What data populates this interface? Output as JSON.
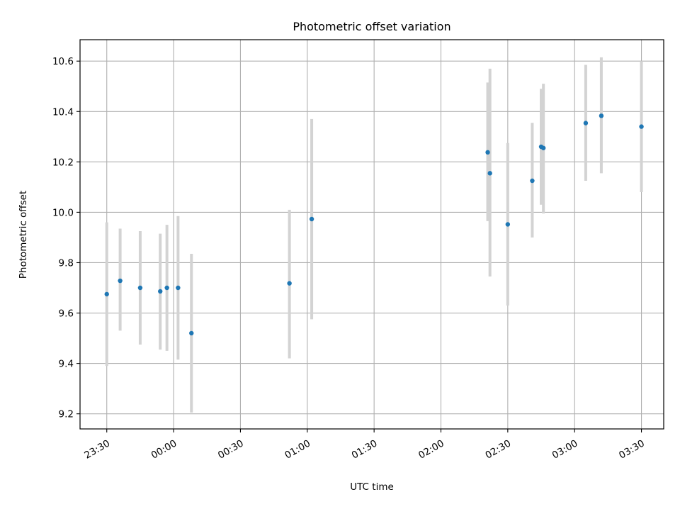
{
  "chart_data": {
    "type": "scatter",
    "title": "Photometric offset variation",
    "xlabel": "UTC time",
    "ylabel": "Photometric offset",
    "x_unit": "UTC time (hh:mm)",
    "xlim": [
      "23:18",
      "03:40"
    ],
    "ylim": [
      9.14,
      10.685
    ],
    "x_ticks": [
      "23:30",
      "00:00",
      "00:30",
      "01:00",
      "01:30",
      "02:00",
      "02:30",
      "03:00",
      "03:30"
    ],
    "y_ticks": [
      9.2,
      9.4,
      9.6,
      9.8,
      10.0,
      10.2,
      10.4,
      10.6
    ],
    "y_tick_labels": [
      "9.2",
      "9.4",
      "9.6",
      "9.8",
      "10.0",
      "10.2",
      "10.4",
      "10.6"
    ],
    "x_tick_label_rotation": 30,
    "grid": true,
    "legend": "none",
    "points": [
      {
        "x": "23:30",
        "y": 9.675,
        "err_low": 9.39,
        "err_high": 9.96
      },
      {
        "x": "23:36",
        "y": 9.728,
        "err_low": 9.53,
        "err_high": 9.935
      },
      {
        "x": "23:45",
        "y": 9.7,
        "err_low": 9.475,
        "err_high": 9.925
      },
      {
        "x": "23:54",
        "y": 9.686,
        "err_low": 9.455,
        "err_high": 9.915
      },
      {
        "x": "23:57",
        "y": 9.7,
        "err_low": 9.45,
        "err_high": 9.95
      },
      {
        "x": "00:02",
        "y": 9.7,
        "err_low": 9.415,
        "err_high": 9.985
      },
      {
        "x": "00:08",
        "y": 9.52,
        "err_low": 9.205,
        "err_high": 9.835
      },
      {
        "x": "00:52",
        "y": 9.718,
        "err_low": 9.42,
        "err_high": 10.01
      },
      {
        "x": "01:02",
        "y": 9.973,
        "err_low": 9.575,
        "err_high": 10.37
      },
      {
        "x": "02:21",
        "y": 10.238,
        "err_low": 9.965,
        "err_high": 10.515
      },
      {
        "x": "02:22",
        "y": 10.155,
        "err_low": 9.745,
        "err_high": 10.57
      },
      {
        "x": "02:30",
        "y": 9.952,
        "err_low": 9.63,
        "err_high": 10.275
      },
      {
        "x": "02:41",
        "y": 10.125,
        "err_low": 9.9,
        "err_high": 10.355
      },
      {
        "x": "02:45",
        "y": 10.26,
        "err_low": 10.03,
        "err_high": 10.49
      },
      {
        "x": "02:46",
        "y": 10.255,
        "err_low": 9.995,
        "err_high": 10.51
      },
      {
        "x": "03:05",
        "y": 10.354,
        "err_low": 10.125,
        "err_high": 10.585
      },
      {
        "x": "03:12",
        "y": 10.383,
        "err_low": 10.155,
        "err_high": 10.615
      },
      {
        "x": "03:30",
        "y": 10.34,
        "err_low": 10.08,
        "err_high": 10.6
      }
    ],
    "colors": {
      "point": "#1f77b4",
      "errorbar": "#d3d3d3",
      "grid": "#b0b0b0",
      "axes": "#000000"
    }
  }
}
